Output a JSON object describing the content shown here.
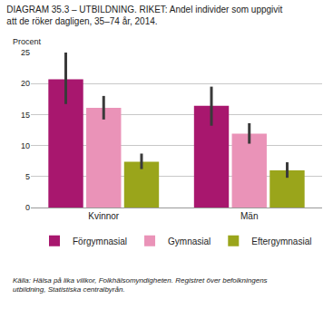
{
  "chart_data": {
    "type": "bar",
    "title": [
      "DIAGRAM 35.3 – UTBILDNING. RIKET: Andel individer som uppgivit",
      "att de röker dagligen, 35–74 år, 2014."
    ],
    "y_label": "Procent",
    "categories": [
      "Kvinnor",
      "Män"
    ],
    "series": [
      {
        "name": "Förgymnasial",
        "color": "#a8176e",
        "values": [
          20.7,
          16.4
        ],
        "ci_low": [
          16.7,
          13.2
        ],
        "ci_high": [
          25.0,
          19.5
        ]
      },
      {
        "name": "Gymnasial",
        "color": "#ea93b8",
        "values": [
          16.1,
          11.9
        ],
        "ci_low": [
          14.2,
          10.3
        ],
        "ci_high": [
          18.0,
          13.6
        ]
      },
      {
        "name": "Eftergymnasial",
        "color": "#9aa51b",
        "values": [
          7.4,
          6.0
        ],
        "ci_low": [
          6.2,
          4.8
        ],
        "ci_high": [
          8.7,
          7.3
        ]
      }
    ],
    "ylim": [
      0,
      25
    ],
    "yticks": [
      0,
      5,
      10,
      15,
      20,
      25
    ],
    "grid": true,
    "legend": "bottom",
    "source": [
      "Källa: Hälsa på lika villkor, Folkhälsomyndigheten. Registret över befolkningens",
      "utbildning, Statistiska centralbyrån."
    ]
  }
}
